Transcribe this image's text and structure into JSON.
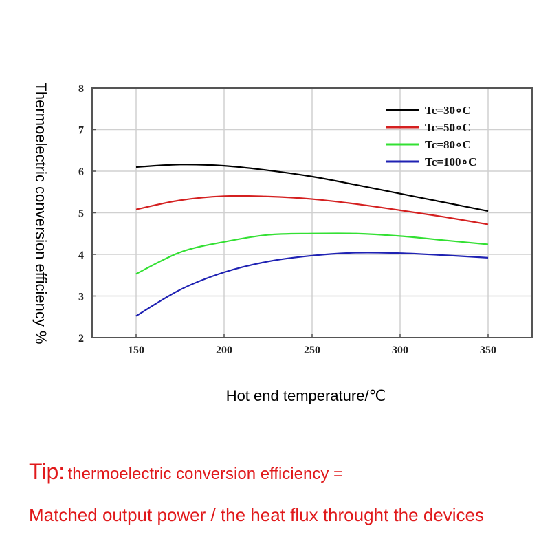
{
  "chart_data": {
    "type": "line",
    "xlabel": "Hot end temperature/℃",
    "ylabel": "Thermoelectric conversion efficiency %",
    "xlim": [
      125,
      375
    ],
    "ylim": [
      2,
      8
    ],
    "x_ticks": [
      150,
      200,
      250,
      300,
      350
    ],
    "y_ticks": [
      2,
      3,
      4,
      5,
      6,
      7,
      8
    ],
    "grid": true,
    "legend_position": "top-right",
    "series": [
      {
        "name": "Tc=30∘C",
        "color": "#000000",
        "x": [
          150,
          175,
          200,
          225,
          250,
          275,
          300,
          325,
          350
        ],
        "y": [
          6.1,
          6.16,
          6.13,
          6.02,
          5.87,
          5.67,
          5.46,
          5.25,
          5.04
        ]
      },
      {
        "name": "Tc=50∘C",
        "color": "#d42020",
        "x": [
          150,
          175,
          200,
          225,
          250,
          275,
          300,
          325,
          350
        ],
        "y": [
          5.08,
          5.3,
          5.4,
          5.39,
          5.33,
          5.21,
          5.06,
          4.9,
          4.72
        ]
      },
      {
        "name": "Tc=80∘C",
        "color": "#33e033",
        "x": [
          150,
          175,
          200,
          225,
          250,
          275,
          300,
          325,
          350
        ],
        "y": [
          3.53,
          4.05,
          4.3,
          4.47,
          4.5,
          4.5,
          4.44,
          4.34,
          4.24
        ]
      },
      {
        "name": "Tc=100∘C",
        "color": "#1f22b3",
        "x": [
          150,
          175,
          200,
          225,
          250,
          275,
          300,
          325,
          350
        ],
        "y": [
          2.52,
          3.15,
          3.57,
          3.83,
          3.97,
          4.04,
          4.03,
          3.98,
          3.92
        ]
      }
    ]
  },
  "tip": {
    "prefix": "Tip:",
    "line1": "thermoelectric conversion efficiency =",
    "line2": "Matched output power / the heat flux throught the devices"
  }
}
